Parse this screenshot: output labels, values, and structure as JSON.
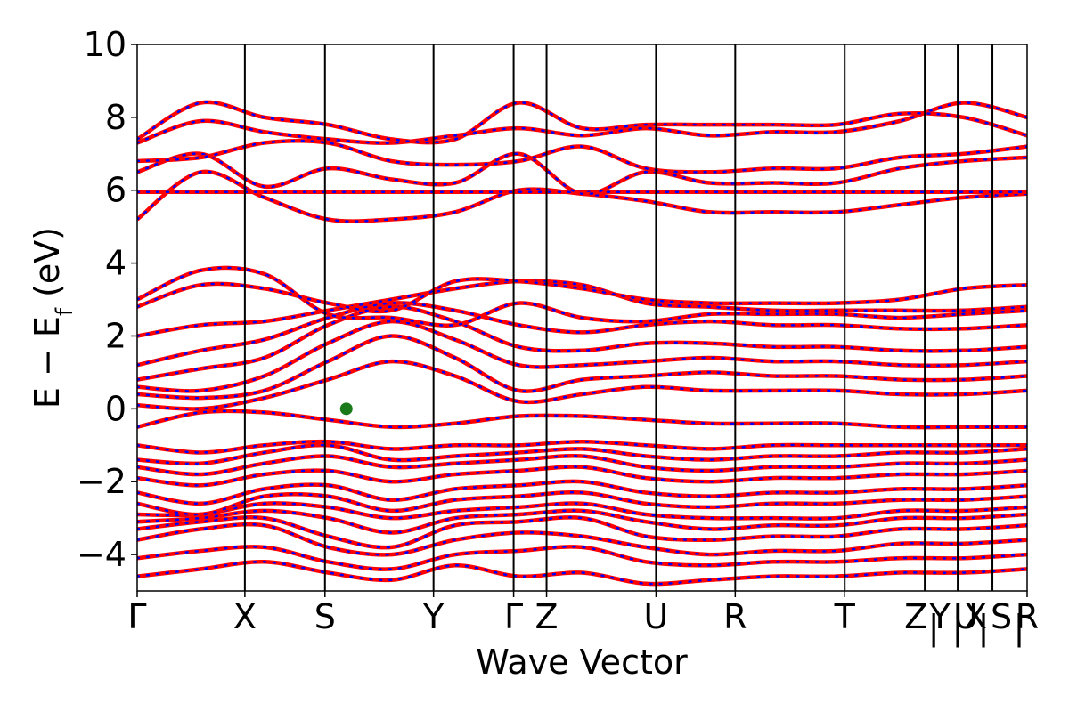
{
  "chart_data": {
    "type": "line",
    "xlabel": "Wave Vector",
    "ylabel_main": "E − E",
    "ylabel_sub": "f",
    "ylabel_unit": "(eV)",
    "ylim": [
      -5,
      10
    ],
    "yticks": [
      {
        "value": -4,
        "label": "−4"
      },
      {
        "value": -2,
        "label": "−2"
      },
      {
        "value": 0,
        "label": "0"
      },
      {
        "value": 2,
        "label": "2"
      },
      {
        "value": 4,
        "label": "4"
      },
      {
        "value": 6,
        "label": "6"
      },
      {
        "value": 8,
        "label": "8"
      },
      {
        "value": 10,
        "label": "10"
      }
    ],
    "kpath_length": 1.0,
    "kpoints": [
      {
        "label": "Γ",
        "x": 0.0
      },
      {
        "label": "X",
        "x": 0.121
      },
      {
        "label": "S",
        "x": 0.211
      },
      {
        "label": "Y",
        "x": 0.333
      },
      {
        "label": "Γ",
        "x": 0.423
      },
      {
        "label": "Z",
        "x": 0.46
      },
      {
        "label": "U",
        "x": 0.583
      },
      {
        "label": "R",
        "x": 0.672
      },
      {
        "label": "T",
        "x": 0.795
      },
      {
        "label": "Z",
        "x": 0.885
      },
      {
        "label": "|",
        "x": 0.885
      },
      {
        "label": "Y",
        "x": 0.922
      },
      {
        "label": "|",
        "x": 0.922
      },
      {
        "label": "X",
        "x": 0.922
      },
      {
        "label": "U",
        "x": 0.961
      },
      {
        "label": "|",
        "x": 0.961
      },
      {
        "label": "S",
        "x": 0.961
      },
      {
        "label": "|",
        "x": 0.961
      },
      {
        "label": "R",
        "x": 1.0
      }
    ],
    "fermi_marker": {
      "x": 0.235,
      "y": 0.0,
      "color": "#1a7a1a"
    },
    "series": [
      {
        "color": "#ff0000",
        "style": "solid"
      },
      {
        "color": "#0000ff",
        "style": "dotted"
      }
    ],
    "bands": [
      {
        "nodes": [
          -4.6,
          -4.4,
          -4.2,
          -4.5,
          -4.7,
          -4.3,
          -4.6,
          -4.5,
          -4.8,
          -4.7,
          -4.6,
          -4.6,
          -4.5,
          -4.5,
          -4.4
        ]
      },
      {
        "nodes": [
          -4.1,
          -3.9,
          -3.8,
          -4.2,
          -4.4,
          -4.0,
          -3.9,
          -3.8,
          -4.2,
          -4.3,
          -4.2,
          -4.2,
          -4.1,
          -4.1,
          -4.0
        ]
      },
      {
        "nodes": [
          -3.6,
          -3.3,
          -3.2,
          -3.8,
          -4.0,
          -3.6,
          -3.4,
          -3.5,
          -3.8,
          -4.0,
          -3.9,
          -3.9,
          -3.7,
          -3.7,
          -3.6
        ]
      },
      {
        "nodes": [
          -3.3,
          -3.1,
          -3.0,
          -3.5,
          -3.8,
          -3.2,
          -3.1,
          -3.0,
          -3.5,
          -3.6,
          -3.5,
          -3.5,
          -3.3,
          -3.3,
          -3.2
        ]
      },
      {
        "nodes": [
          -3.1,
          -3.0,
          -2.8,
          -3.0,
          -3.4,
          -3.0,
          -2.9,
          -2.8,
          -3.1,
          -3.3,
          -3.2,
          -3.2,
          -3.0,
          -3.0,
          -2.9
        ]
      },
      {
        "nodes": [
          -2.9,
          -2.9,
          -2.6,
          -2.7,
          -3.0,
          -2.8,
          -2.7,
          -2.6,
          -2.9,
          -3.0,
          -3.0,
          -3.0,
          -2.8,
          -2.8,
          -2.7
        ]
      },
      {
        "nodes": [
          -2.6,
          -2.9,
          -2.4,
          -2.4,
          -2.8,
          -2.5,
          -2.4,
          -2.3,
          -2.6,
          -2.7,
          -2.6,
          -2.6,
          -2.5,
          -2.5,
          -2.4
        ]
      },
      {
        "nodes": [
          -2.3,
          -2.6,
          -2.2,
          -2.1,
          -2.5,
          -2.2,
          -2.1,
          -2.0,
          -2.3,
          -2.4,
          -2.3,
          -2.3,
          -2.2,
          -2.2,
          -2.1
        ]
      },
      {
        "nodes": [
          -1.9,
          -2.1,
          -1.8,
          -1.7,
          -2.0,
          -1.8,
          -1.7,
          -1.6,
          -1.9,
          -2.0,
          -1.9,
          -1.9,
          -1.8,
          -1.8,
          -1.7
        ]
      },
      {
        "nodes": [
          -1.6,
          -1.8,
          -1.5,
          -1.3,
          -1.6,
          -1.5,
          -1.4,
          -1.3,
          -1.6,
          -1.7,
          -1.6,
          -1.6,
          -1.5,
          -1.5,
          -1.4
        ]
      },
      {
        "nodes": [
          -1.4,
          -1.5,
          -1.2,
          -1.0,
          -1.4,
          -1.3,
          -1.2,
          -1.1,
          -1.3,
          -1.4,
          -1.3,
          -1.3,
          -1.2,
          -1.2,
          -1.1
        ]
      },
      {
        "nodes": [
          -1.0,
          -1.2,
          -1.0,
          -0.9,
          -1.1,
          -1.0,
          -1.0,
          -0.9,
          -1.0,
          -1.1,
          -1.0,
          -1.0,
          -1.0,
          -1.0,
          -1.0
        ]
      },
      {
        "nodes": [
          -0.5,
          -0.1,
          -0.1,
          -0.3,
          -0.5,
          -0.4,
          -0.2,
          -0.2,
          -0.3,
          -0.4,
          -0.4,
          -0.4,
          -0.5,
          -0.5,
          -0.5
        ]
      },
      {
        "nodes": [
          0.1,
          0.0,
          0.3,
          0.8,
          1.3,
          0.9,
          0.2,
          0.4,
          0.6,
          0.5,
          0.5,
          0.5,
          0.4,
          0.4,
          0.5
        ]
      },
      {
        "nodes": [
          0.4,
          0.3,
          0.5,
          1.3,
          2.0,
          1.4,
          0.5,
          0.8,
          0.9,
          1.0,
          0.9,
          0.9,
          0.8,
          0.8,
          0.9
        ]
      },
      {
        "nodes": [
          0.6,
          0.5,
          0.9,
          1.8,
          2.4,
          1.9,
          1.2,
          1.2,
          1.3,
          1.4,
          1.3,
          1.3,
          1.2,
          1.2,
          1.3
        ]
      },
      {
        "nodes": [
          0.8,
          1.1,
          1.4,
          2.3,
          2.8,
          2.4,
          1.7,
          1.6,
          1.8,
          1.8,
          1.7,
          1.7,
          1.6,
          1.6,
          1.7
        ]
      },
      {
        "nodes": [
          1.2,
          1.6,
          1.9,
          2.5,
          2.9,
          2.7,
          2.3,
          2.1,
          2.3,
          2.4,
          2.3,
          2.3,
          2.2,
          2.2,
          2.3
        ]
      },
      {
        "nodes": [
          2.0,
          2.3,
          2.4,
          2.7,
          3.0,
          3.3,
          3.5,
          3.4,
          2.9,
          2.8,
          2.7,
          2.7,
          2.7,
          2.7,
          2.8
        ]
      },
      {
        "nodes": [
          2.8,
          3.4,
          3.3,
          2.9,
          2.7,
          3.5,
          3.5,
          3.3,
          3.0,
          2.9,
          2.9,
          2.9,
          3.0,
          3.3,
          3.4
        ]
      },
      {
        "nodes": [
          3.0,
          3.8,
          3.7,
          2.6,
          2.5,
          2.3,
          2.9,
          2.5,
          2.4,
          2.6,
          2.6,
          2.6,
          2.5,
          2.6,
          2.7
        ]
      },
      {
        "nodes": [
          5.2,
          6.5,
          5.8,
          5.2,
          5.2,
          5.4,
          6.0,
          5.9,
          5.7,
          5.4,
          5.4,
          5.4,
          5.6,
          5.8,
          5.9
        ]
      },
      {
        "nodes": [
          5.95,
          5.95,
          5.95,
          5.95,
          5.95,
          5.95,
          5.95,
          5.95,
          5.95,
          5.95,
          5.95,
          5.95,
          5.95,
          5.95,
          5.95
        ]
      },
      {
        "nodes": [
          6.5,
          7.0,
          6.1,
          6.6,
          6.3,
          6.2,
          7.0,
          5.9,
          6.5,
          6.2,
          6.2,
          6.2,
          6.6,
          6.8,
          6.9
        ]
      },
      {
        "nodes": [
          6.8,
          6.9,
          7.3,
          7.3,
          6.8,
          6.7,
          6.8,
          7.2,
          6.6,
          6.5,
          6.6,
          6.6,
          6.9,
          7.0,
          7.2
        ]
      },
      {
        "nodes": [
          7.3,
          7.9,
          7.6,
          7.4,
          7.3,
          7.5,
          7.7,
          7.5,
          7.7,
          7.5,
          7.6,
          7.6,
          7.9,
          8.4,
          8.0
        ]
      },
      {
        "nodes": [
          7.4,
          8.4,
          8.0,
          7.8,
          7.4,
          7.4,
          8.4,
          7.7,
          7.8,
          7.8,
          7.8,
          7.8,
          8.1,
          8.0,
          7.5
        ]
      }
    ]
  }
}
